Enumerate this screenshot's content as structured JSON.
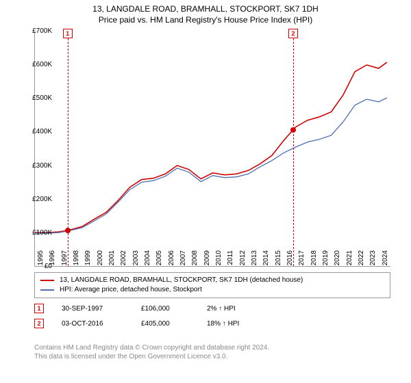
{
  "chart": {
    "title_main": "13, LANGDALE ROAD, BRAMHALL, STOCKPORT, SK7 1DH",
    "title_sub": "Price paid vs. HM Land Registry's House Price Index (HPI)",
    "type": "line",
    "ylim": [
      0,
      700
    ],
    "yticks": [
      0,
      100,
      200,
      300,
      400,
      500,
      600,
      700
    ],
    "ylabels": [
      "£0",
      "£100K",
      "£200K",
      "£300K",
      "£400K",
      "£500K",
      "£600K",
      "£700K"
    ],
    "xlim": [
      1995,
      2025
    ],
    "xticks": [
      1995,
      1996,
      1997,
      1998,
      1999,
      2000,
      2001,
      2002,
      2003,
      2004,
      2005,
      2006,
      2007,
      2008,
      2009,
      2010,
      2011,
      2012,
      2013,
      2014,
      2015,
      2016,
      2017,
      2018,
      2019,
      2020,
      2021,
      2022,
      2023,
      2024
    ],
    "xlabels": [
      "1995",
      "1996",
      "1997",
      "1998",
      "1999",
      "2000",
      "2001",
      "2002",
      "2003",
      "2004",
      "2005",
      "2006",
      "2007",
      "2008",
      "2009",
      "2010",
      "2011",
      "2012",
      "2013",
      "2014",
      "2015",
      "2016",
      "2017",
      "2018",
      "2019",
      "2020",
      "2021",
      "2022",
      "2023",
      "2024"
    ],
    "series": [
      {
        "name": "price_paid",
        "label": "13, LANGDALE ROAD, BRAMHALL, STOCKPORT, SK7 1DH (detached house)",
        "color": "#d40000",
        "line_width": 1.6,
        "data": [
          [
            1995,
            100
          ],
          [
            1996,
            100
          ],
          [
            1997,
            102
          ],
          [
            1997.75,
            106
          ],
          [
            1998,
            108
          ],
          [
            1999,
            118
          ],
          [
            2000,
            140
          ],
          [
            2001,
            160
          ],
          [
            2002,
            195
          ],
          [
            2003,
            235
          ],
          [
            2004,
            258
          ],
          [
            2005,
            262
          ],
          [
            2006,
            275
          ],
          [
            2007,
            300
          ],
          [
            2008,
            288
          ],
          [
            2009,
            260
          ],
          [
            2010,
            278
          ],
          [
            2011,
            272
          ],
          [
            2012,
            275
          ],
          [
            2013,
            285
          ],
          [
            2014,
            305
          ],
          [
            2015,
            330
          ],
          [
            2016,
            375
          ],
          [
            2016.75,
            405
          ],
          [
            2017,
            415
          ],
          [
            2018,
            435
          ],
          [
            2019,
            445
          ],
          [
            2020,
            460
          ],
          [
            2021,
            510
          ],
          [
            2022,
            580
          ],
          [
            2023,
            600
          ],
          [
            2024,
            590
          ],
          [
            2024.7,
            608
          ]
        ]
      },
      {
        "name": "hpi",
        "label": "HPI: Average price, detached house, Stockport",
        "color": "#4a6fb3",
        "line_width": 1.3,
        "data": [
          [
            1995,
            98
          ],
          [
            1996,
            98
          ],
          [
            1997,
            100
          ],
          [
            1998,
            106
          ],
          [
            1999,
            115
          ],
          [
            2000,
            135
          ],
          [
            2001,
            155
          ],
          [
            2002,
            190
          ],
          [
            2003,
            228
          ],
          [
            2004,
            250
          ],
          [
            2005,
            255
          ],
          [
            2006,
            268
          ],
          [
            2007,
            292
          ],
          [
            2008,
            280
          ],
          [
            2009,
            252
          ],
          [
            2010,
            270
          ],
          [
            2011,
            264
          ],
          [
            2012,
            266
          ],
          [
            2013,
            275
          ],
          [
            2014,
            296
          ],
          [
            2015,
            315
          ],
          [
            2016,
            338
          ],
          [
            2017,
            355
          ],
          [
            2018,
            370
          ],
          [
            2019,
            378
          ],
          [
            2020,
            390
          ],
          [
            2021,
            430
          ],
          [
            2022,
            480
          ],
          [
            2023,
            498
          ],
          [
            2024,
            490
          ],
          [
            2024.7,
            502
          ]
        ]
      }
    ],
    "markers": [
      {
        "id": "1",
        "x": 1997.75,
        "y": 106,
        "color": "#d40000"
      },
      {
        "id": "2",
        "x": 2016.75,
        "y": 405,
        "color": "#d40000"
      }
    ],
    "marker_vline_color": "#d40000",
    "label_fontsize": 10,
    "background_color": "#ffffff",
    "grid_color": "#999999"
  },
  "legend": {
    "items": [
      {
        "color": "#d40000",
        "label": "13, LANGDALE ROAD, BRAMHALL, STOCKPORT, SK7 1DH (detached house)"
      },
      {
        "color": "#4a6fb3",
        "label": "HPI: Average price, detached house, Stockport"
      }
    ]
  },
  "transactions": [
    {
      "id": "1",
      "color": "#d40000",
      "date": "30-SEP-1997",
      "price": "£106,000",
      "pct": "2% ↑ HPI"
    },
    {
      "id": "2",
      "color": "#d40000",
      "date": "03-OCT-2016",
      "price": "£405,000",
      "pct": "18% ↑ HPI"
    }
  ],
  "attribution": {
    "line1": "Contains HM Land Registry data © Crown copyright and database right 2024.",
    "line2": "This data is licensed under the Open Government Licence v3.0."
  }
}
